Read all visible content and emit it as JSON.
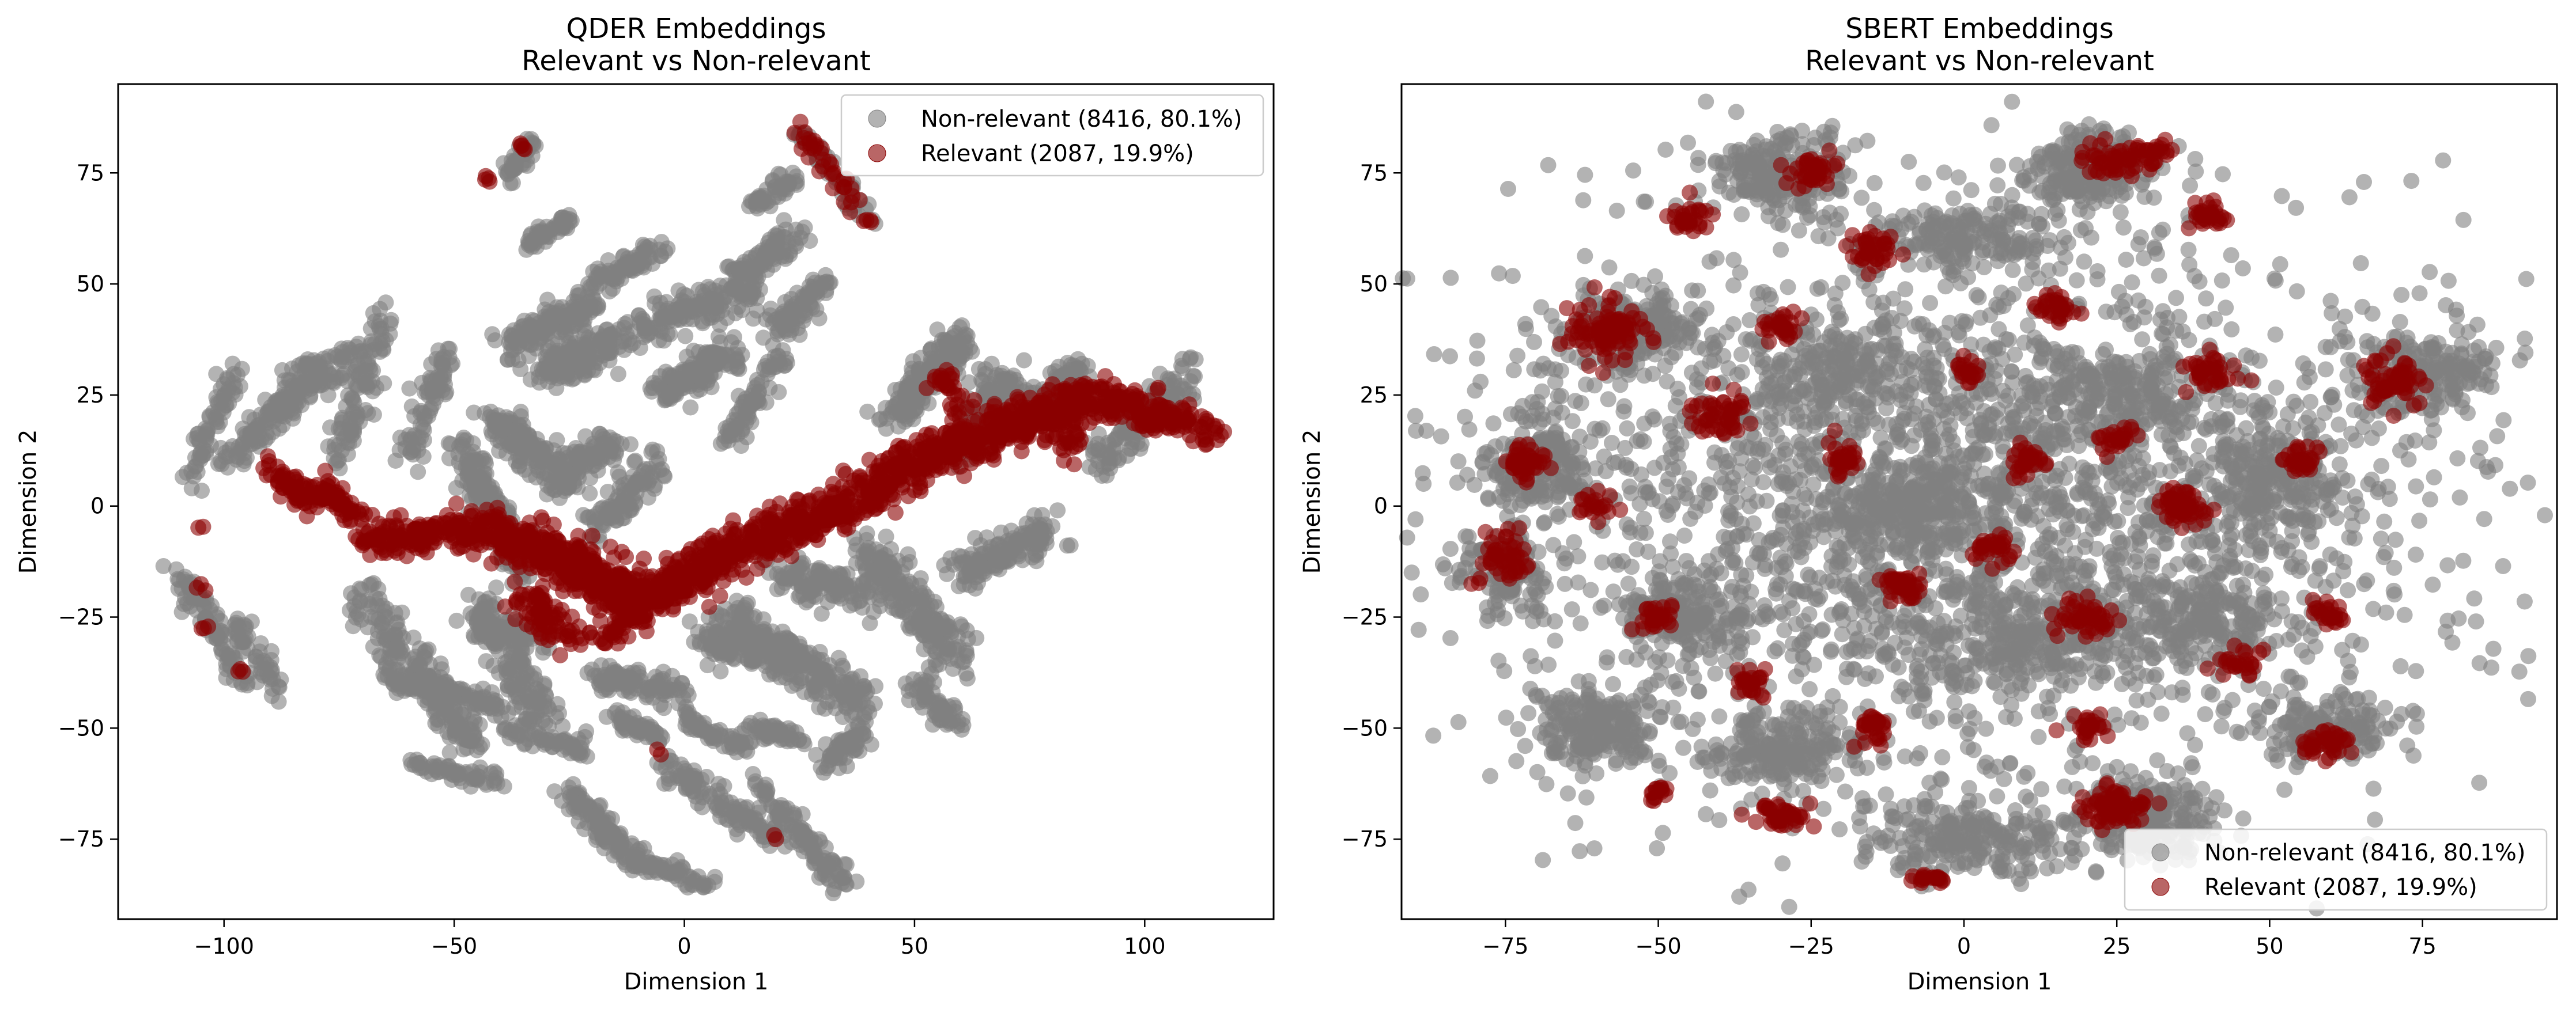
{
  "chart_data": [
    {
      "type": "scatter",
      "title": [
        "QDER Embeddings",
        "Relevant vs Non-relevant"
      ],
      "xlabel": "Dimension 1",
      "ylabel": "Dimension 2",
      "xlim": [
        -123,
        128
      ],
      "ylim": [
        -93,
        95
      ],
      "xticks": [
        -100,
        -50,
        0,
        50,
        100
      ],
      "yticks": [
        -75,
        -50,
        -25,
        0,
        25,
        50,
        75
      ],
      "grid": false,
      "legend_position": "top-right",
      "series": [
        {
          "name": "Non-relevant (8416, 80.1%)",
          "color": "#808080",
          "alpha": 0.6,
          "count": 8416,
          "segments": [
            [
              -110,
              -14,
              -95,
              -40,
              2.5,
              90
            ],
            [
              -108,
              5,
              -98,
              30,
              2.5,
              70
            ],
            [
              -100,
              10,
              -72,
              35,
              3,
              150
            ],
            [
              -98,
              -25,
              -88,
              -42,
              2.5,
              50
            ],
            [
              -90,
              20,
              -80,
              33,
              3,
              60
            ],
            [
              -75,
              10,
              -65,
              44,
              3,
              100
            ],
            [
              -60,
              12,
              -52,
              34,
              3,
              80
            ],
            [
              -70,
              -20,
              -45,
              -55,
              4,
              200
            ],
            [
              -65,
              -38,
              -40,
              -45,
              3,
              120
            ],
            [
              -60,
              -58,
              -40,
              -62,
              2,
              60
            ],
            [
              -45,
              -22,
              -30,
              -50,
              4,
              150
            ],
            [
              -40,
              -50,
              -20,
              -55,
              2,
              60
            ],
            [
              -45,
              -27,
              -30,
              -30,
              3,
              80
            ],
            [
              -20,
              -38,
              0,
              -42,
              3,
              100
            ],
            [
              -15,
              -48,
              -5,
              -52,
              2,
              50
            ],
            [
              -25,
              -65,
              -10,
              -80,
              3,
              120
            ],
            [
              -10,
              -80,
              5,
              -85,
              2,
              60
            ],
            [
              -5,
              -58,
              20,
              -75,
              3,
              120
            ],
            [
              15,
              -62,
              35,
              -85,
              3,
              110
            ],
            [
              0,
              -48,
              15,
              -55,
              2,
              60
            ],
            [
              -40,
              35,
              -20,
              45,
              4,
              150
            ],
            [
              -35,
              58,
              -25,
              65,
              2,
              50
            ],
            [
              -38,
              74,
              -33,
              82,
              2,
              40
            ],
            [
              -20,
              50,
              -5,
              58,
              3,
              80
            ],
            [
              -10,
              40,
              15,
              48,
              4,
              150
            ],
            [
              -5,
              25,
              10,
              35,
              4,
              150
            ],
            [
              10,
              50,
              25,
              62,
              3,
              100
            ],
            [
              15,
              68,
              25,
              74,
              2,
              50
            ],
            [
              20,
              40,
              30,
              50,
              3,
              80
            ],
            [
              -42,
              20,
              -30,
              10,
              4,
              120
            ],
            [
              -30,
              5,
              -15,
              15,
              4,
              120
            ],
            [
              -20,
              -5,
              -5,
              10,
              4,
              100
            ],
            [
              10,
              15,
              20,
              35,
              3,
              80
            ],
            [
              10,
              -25,
              40,
              -45,
              5,
              250
            ],
            [
              20,
              -15,
              40,
              -20,
              4,
              120
            ],
            [
              5,
              -30,
              25,
              -35,
              4,
              150
            ],
            [
              45,
              20,
              60,
              38,
              4,
              180
            ],
            [
              60,
              10,
              70,
              30,
              4,
              150
            ],
            [
              75,
              20,
              85,
              30,
              4,
              150
            ],
            [
              90,
              10,
              110,
              30,
              4,
              120
            ],
            [
              40,
              -10,
              60,
              -35,
              5,
              220
            ],
            [
              60,
              -15,
              80,
              -5,
              4,
              150
            ],
            [
              50,
              -40,
              60,
              -50,
              3,
              60
            ],
            [
              40,
              -50,
              30,
              -58,
              3,
              60
            ],
            [
              15,
              -50,
              25,
              -52,
              2,
              50
            ],
            [
              -48,
              13,
              -35,
              -15,
              4,
              200
            ],
            [
              25,
              85,
              40,
              65,
              2,
              60
            ],
            [
              -30,
              30,
              -15,
              38,
              4,
              150
            ]
          ]
        },
        {
          "name": "Relevant (2087, 19.9%)",
          "color": "#8b0000",
          "alpha": 0.6,
          "count": 2087,
          "segments": [
            [
              -68,
              -8,
              -45,
              -5,
              4,
              150
            ],
            [
              -45,
              -5,
              -25,
              -12,
              5,
              200
            ],
            [
              -25,
              -12,
              -10,
              -22,
              5,
              250
            ],
            [
              -10,
              -22,
              10,
              -10,
              5,
              250
            ],
            [
              10,
              -10,
              30,
              -2,
              5,
              200
            ],
            [
              30,
              -2,
              50,
              10,
              5,
              200
            ],
            [
              50,
              10,
              70,
              18,
              5,
              200
            ],
            [
              70,
              18,
              90,
              25,
              5,
              200
            ],
            [
              90,
              25,
              115,
              16,
              4,
              150
            ],
            [
              -90,
              8,
              -80,
              0,
              3,
              60
            ],
            [
              -80,
              5,
              -70,
              -3,
              3,
              60
            ],
            [
              -35,
              -20,
              -25,
              -30,
              4,
              80
            ],
            [
              25,
              85,
              40,
              64,
              2,
              40
            ],
            [
              -36,
              82,
              -33,
              80,
              1,
              5
            ],
            [
              -43,
              74,
              -42,
              73,
              1,
              4
            ],
            [
              -105,
              -18,
              -104,
              -19,
              1,
              3
            ],
            [
              -106,
              -27,
              -104,
              -28,
              1,
              3
            ],
            [
              -97,
              -37,
              -96,
              -38,
              1,
              3
            ],
            [
              -105,
              -4,
              -104,
              -5,
              1,
              2
            ],
            [
              -5,
              -55,
              -5,
              -56,
              1,
              2
            ],
            [
              20,
              -75,
              20,
              -75,
              1,
              2
            ],
            [
              55,
              30,
              60,
              22,
              3,
              30
            ],
            [
              80,
              20,
              85,
              12,
              3,
              30
            ],
            [
              -20,
              -30,
              -10,
              -25,
              3,
              40
            ]
          ]
        }
      ]
    },
    {
      "type": "scatter",
      "title": [
        "SBERT Embeddings",
        "Relevant vs Non-relevant"
      ],
      "xlabel": "Dimension 1",
      "ylabel": "Dimension 2",
      "xlim": [
        -92,
        97
      ],
      "ylim": [
        -93,
        95
      ],
      "xticks": [
        -75,
        -50,
        -25,
        0,
        25,
        50,
        75
      ],
      "yticks": [
        -75,
        -50,
        -25,
        0,
        25,
        50,
        75
      ],
      "grid": false,
      "legend_position": "bottom-right",
      "series": [
        {
          "name": "Non-relevant (8416, 80.1%)",
          "color": "#808080",
          "alpha": 0.6,
          "count": 8416,
          "clusters": [
            [
              0,
              0,
              70,
              55,
              2500
            ],
            [
              -30,
              75,
              10,
              8,
              220
            ],
            [
              20,
              75,
              10,
              8,
              220
            ],
            [
              0,
              60,
              15,
              7,
              180
            ],
            [
              -55,
              40,
              10,
              8,
              200
            ],
            [
              -70,
              10,
              8,
              10,
              180
            ],
            [
              -75,
              -15,
              6,
              8,
              120
            ],
            [
              -60,
              -50,
              10,
              8,
              220
            ],
            [
              -30,
              -55,
              12,
              8,
              200
            ],
            [
              0,
              -75,
              15,
              8,
              220
            ],
            [
              30,
              -70,
              10,
              8,
              200
            ],
            [
              60,
              -50,
              10,
              7,
              160
            ],
            [
              75,
              30,
              10,
              8,
              200
            ],
            [
              50,
              5,
              10,
              15,
              200
            ],
            [
              -20,
              30,
              15,
              10,
              200
            ],
            [
              25,
              25,
              15,
              10,
              200
            ],
            [
              -45,
              -25,
              10,
              8,
              160
            ],
            [
              10,
              -30,
              15,
              10,
              200
            ],
            [
              -10,
              0,
              15,
              10,
              200
            ],
            [
              40,
              -25,
              12,
              10,
              180
            ]
          ]
        },
        {
          "name": "Relevant (2087, 19.9%)",
          "color": "#8b0000",
          "alpha": 0.6,
          "count": 2087,
          "clusters": [
            [
              -58,
              40,
              6,
              6,
              90
            ],
            [
              -25,
              75,
              3,
              4,
              40
            ],
            [
              -15,
              58,
              3,
              4,
              40
            ],
            [
              -45,
              65,
              3,
              3,
              30
            ],
            [
              25,
              78,
              5,
              3,
              50
            ],
            [
              40,
              65,
              3,
              3,
              30
            ],
            [
              30,
              80,
              3,
              2,
              20
            ],
            [
              -72,
              10,
              3,
              4,
              40
            ],
            [
              -75,
              -12,
              4,
              5,
              50
            ],
            [
              -40,
              20,
              4,
              4,
              50
            ],
            [
              -50,
              -25,
              3,
              3,
              30
            ],
            [
              -15,
              -50,
              3,
              3,
              30
            ],
            [
              -30,
              -70,
              4,
              3,
              40
            ],
            [
              -50,
              -65,
              2,
              2,
              15
            ],
            [
              25,
              -68,
              5,
              4,
              80
            ],
            [
              -5,
              -84,
              3,
              1,
              20
            ],
            [
              35,
              0,
              4,
              4,
              60
            ],
            [
              20,
              -25,
              4,
              4,
              50
            ],
            [
              60,
              -53,
              4,
              3,
              40
            ],
            [
              70,
              28,
              4,
              5,
              60
            ],
            [
              -10,
              -18,
              3,
              3,
              40
            ],
            [
              5,
              -10,
              3,
              3,
              30
            ],
            [
              10,
              10,
              3,
              3,
              30
            ],
            [
              -30,
              40,
              3,
              3,
              30
            ],
            [
              40,
              30,
              4,
              3,
              40
            ],
            [
              55,
              10,
              3,
              3,
              30
            ],
            [
              -20,
              10,
              3,
              3,
              30
            ],
            [
              15,
              45,
              3,
              3,
              30
            ],
            [
              -60,
              0,
              3,
              3,
              20
            ],
            [
              0,
              30,
              3,
              3,
              20
            ],
            [
              25,
              15,
              3,
              3,
              25
            ],
            [
              -35,
              -40,
              3,
              3,
              25
            ],
            [
              45,
              -35,
              3,
              3,
              25
            ],
            [
              60,
              -25,
              3,
              3,
              25
            ],
            [
              20,
              -50,
              3,
              3,
              25
            ]
          ]
        }
      ]
    }
  ]
}
